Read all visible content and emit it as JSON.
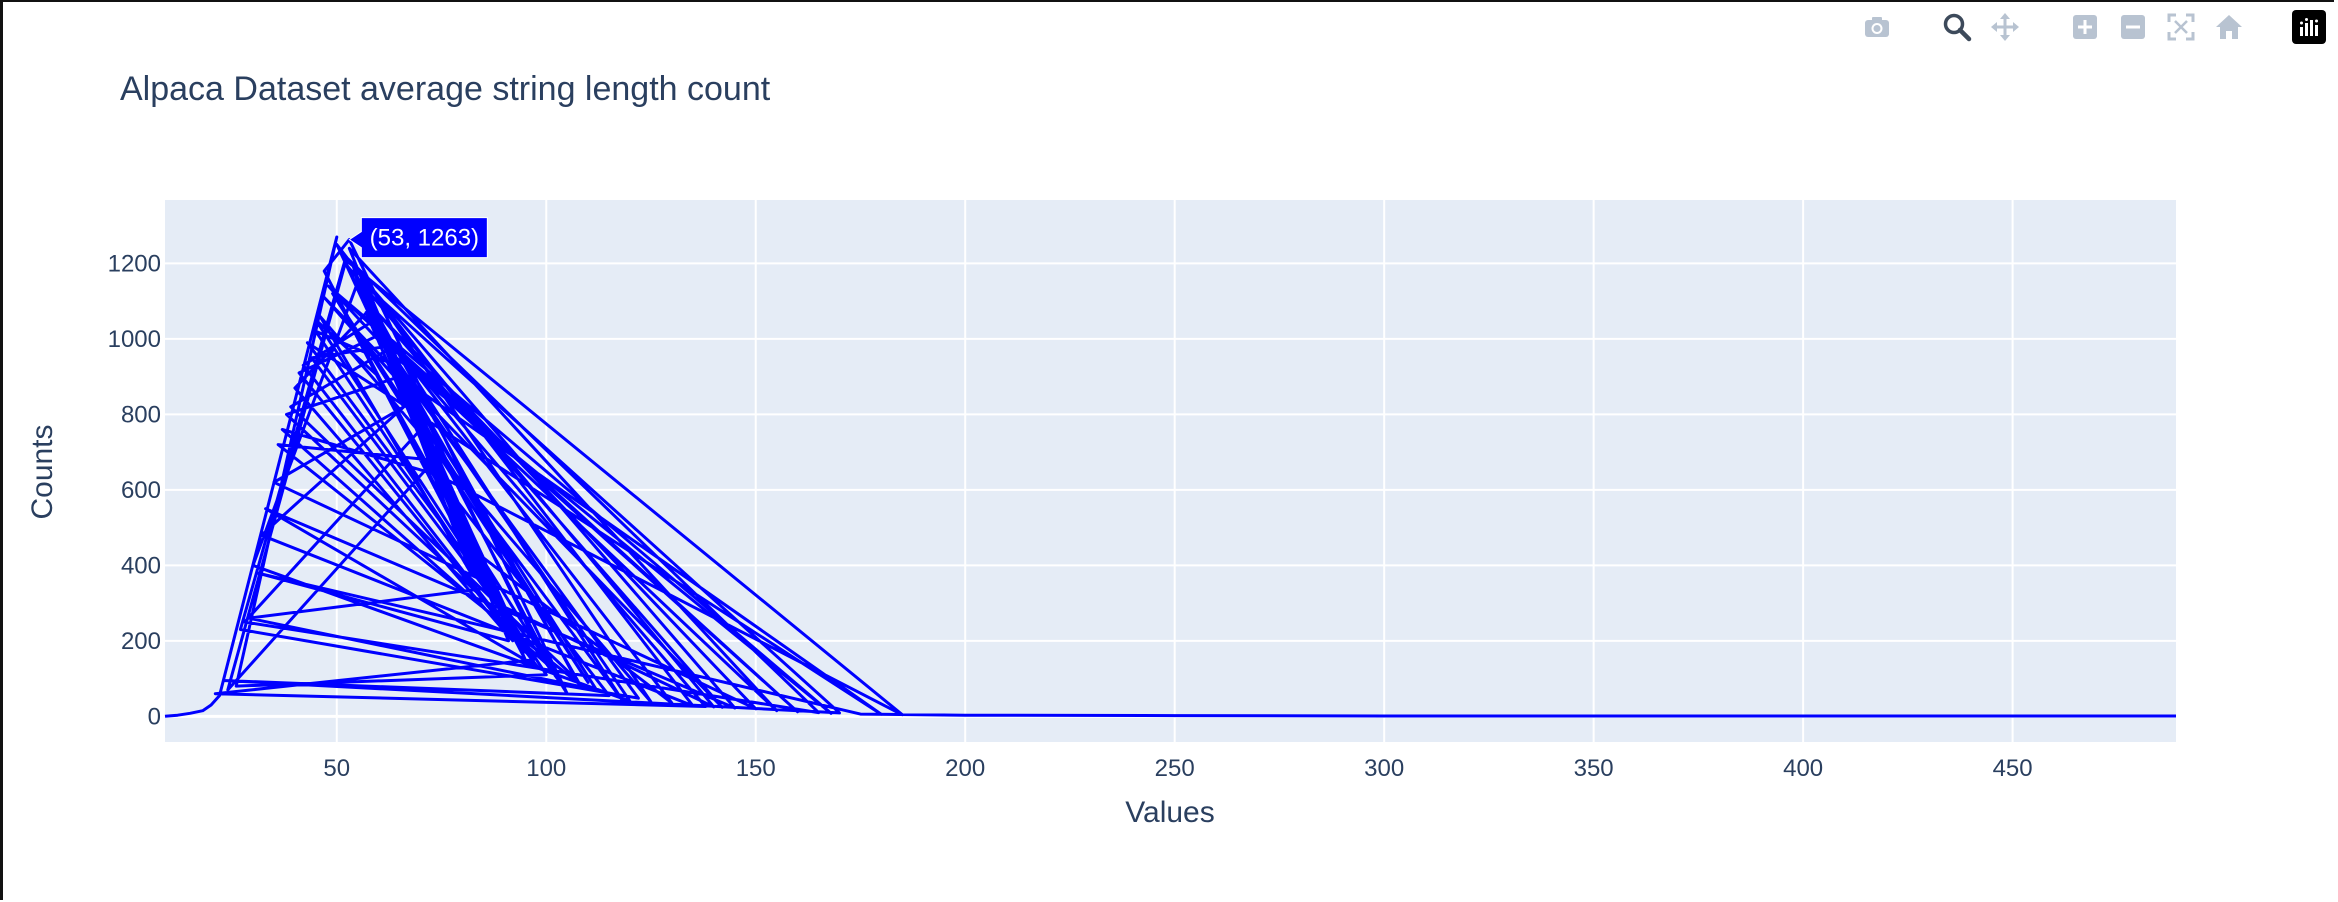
{
  "modebar": {
    "buttons": [
      {
        "name": "camera-icon"
      },
      {
        "name": "zoom-icon",
        "active": true
      },
      {
        "name": "pan-icon"
      },
      {
        "name": "zoom-in-icon"
      },
      {
        "name": "zoom-out-icon"
      },
      {
        "name": "autoscale-icon"
      },
      {
        "name": "reset-axes-icon"
      },
      {
        "name": "plotly-logo-icon"
      }
    ]
  },
  "chart_data": {
    "type": "line",
    "title": "Alpaca Dataset average string length count",
    "xlabel": "Values",
    "ylabel": "Counts",
    "xlim": [
      9,
      489
    ],
    "ylim": [
      -68,
      1368
    ],
    "xticks": [
      50,
      100,
      150,
      200,
      250,
      300,
      350,
      400,
      450
    ],
    "yticks": [
      0,
      200,
      400,
      600,
      800,
      1000,
      1200
    ],
    "grid": true,
    "colors": {
      "line": "#0000ff",
      "plot_bg": "#e5ecf6",
      "grid": "#ffffff",
      "text": "#2a3f5f"
    },
    "hover": {
      "x": 53,
      "y": 1263,
      "text": "(53, 1263)"
    },
    "series": [
      {
        "values_x": [
          9,
          12,
          15,
          18,
          20,
          22,
          50,
          26,
          100,
          45,
          60,
          80,
          105,
          53,
          47,
          95,
          55,
          30,
          120,
          62,
          44,
          88,
          140,
          52,
          24,
          75,
          110,
          49,
          66,
          35,
          150,
          57,
          92,
          40,
          58,
          118,
          70,
          28,
          165,
          51,
          85,
          130,
          59,
          42,
          98,
          33,
          145,
          54,
          72,
          36,
          108,
          63,
          48,
          160,
          61,
          82,
          46,
          125,
          56,
          90,
          38,
          65,
          180,
          43,
          103,
          68,
          32,
          135,
          50,
          78,
          115,
          23,
          170,
          55,
          95,
          41,
          60,
          155,
          53,
          86,
          29,
          112,
          67,
          47,
          142,
          58,
          100,
          37,
          74,
          185,
          52,
          27,
          122,
          64,
          45,
          97,
          21,
          138,
          57,
          83,
          49,
          168,
          62,
          39,
          107,
          54,
          91,
          31,
          175,
          200,
          250,
          300,
          350,
          400,
          450,
          489
        ],
        "values_y": [
          0,
          3,
          8,
          15,
          30,
          55,
          1270,
          80,
          110,
          1050,
          900,
          500,
          60,
          1263,
          1180,
          150,
          1150,
          400,
          40,
          980,
          950,
          300,
          25,
          1200,
          70,
          700,
          90,
          1120,
          820,
          620,
          20,
          1100,
          200,
          870,
          1080,
          45,
          760,
          250,
          10,
          1230,
          420,
          35,
          1050,
          930,
          130,
          550,
          22,
          1190,
          680,
          720,
          85,
          960,
          1140,
          12,
          1000,
          380,
          1060,
          38,
          1170,
          260,
          800,
          900,
          5,
          990,
          95,
          840,
          480,
          28,
          1250,
          580,
          55,
          95,
          9,
          1160,
          170,
          910,
          1010,
          15,
          1240,
          340,
          260,
          70,
          860,
          1110,
          24,
          1090,
          140,
          760,
          640,
          4,
          1210,
          230,
          48,
          930,
          1020,
          150,
          60,
          26,
          1070,
          400,
          1130,
          8,
          970,
          820,
          100,
          1180,
          200,
          380,
          6,
          3,
          2,
          1,
          1,
          1,
          1,
          1
        ]
      }
    ]
  }
}
